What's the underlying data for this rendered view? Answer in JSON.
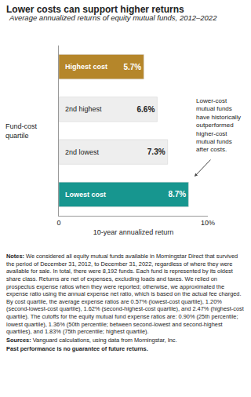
{
  "chart_data": {
    "type": "bar",
    "title": "Lower costs can support higher returns",
    "subtitle": "Average annualized returns of equity mutual funds, 2012–2022",
    "y_label": "Fund-cost quartile",
    "x_label": "10-year annualized return",
    "categories": [
      "Highest cost",
      "2nd highest",
      "2nd lowest",
      "Lowest cost"
    ],
    "values": [
      5.7,
      6.6,
      7.3,
      8.7
    ],
    "value_labels": [
      "5.7%",
      "6.6%",
      "7.3%",
      "8.7%"
    ],
    "colors": [
      "#b5862a",
      "#eeeeee",
      "#eeeeee",
      "#17968f"
    ],
    "orientation": "horizontal",
    "data_labels": true,
    "tick_labels": "x",
    "grid": false,
    "xlim": [
      0,
      10
    ],
    "xticks": [
      0,
      {
        "value": 10,
        "label": "10%"
      }
    ],
    "annotation": [
      "Lower-cost",
      "mutual funds",
      "have historically",
      "outperformed",
      "higher-cost",
      "mutual funds",
      "after costs."
    ],
    "notes": {
      "label": "Notes:",
      "text": "We considered all equity mutual funds available in Morningstar Direct that survived the period of December 31, 2012, to December 31, 2022, regardless of where they were available for sale. In total, there were 8,192 funds. Each fund is represented by its oldest share class. Returns are net of expenses, excluding loads and taxes. We relied on prospectus expense ratios when they were reported; otherwise, we approximated the expense ratio using the annual expense net ratio, which is based on the actual fee charged. By cost quartile, the average expense ratios are 0.57% (lowest-cost quartile), 1.20% (second-lowest-cost quartile), 1.62% (second-highest-cost quartile), and 2.47% (highest-cost quartile). The cutoffs for the equity mutual fund expense ratios are: 0.90% (25th percentile; lowest quartile), 1.36% (50th percentile; between second-lowest and second-highest quartiles), and 1.83% (75th percentile; highest quartile)."
    },
    "sources": {
      "label": "Sources:",
      "text": "Vanguard calculations, using data from Morningstar, Inc."
    },
    "disclaimer": "Past performance is no guarantee of future returns."
  }
}
